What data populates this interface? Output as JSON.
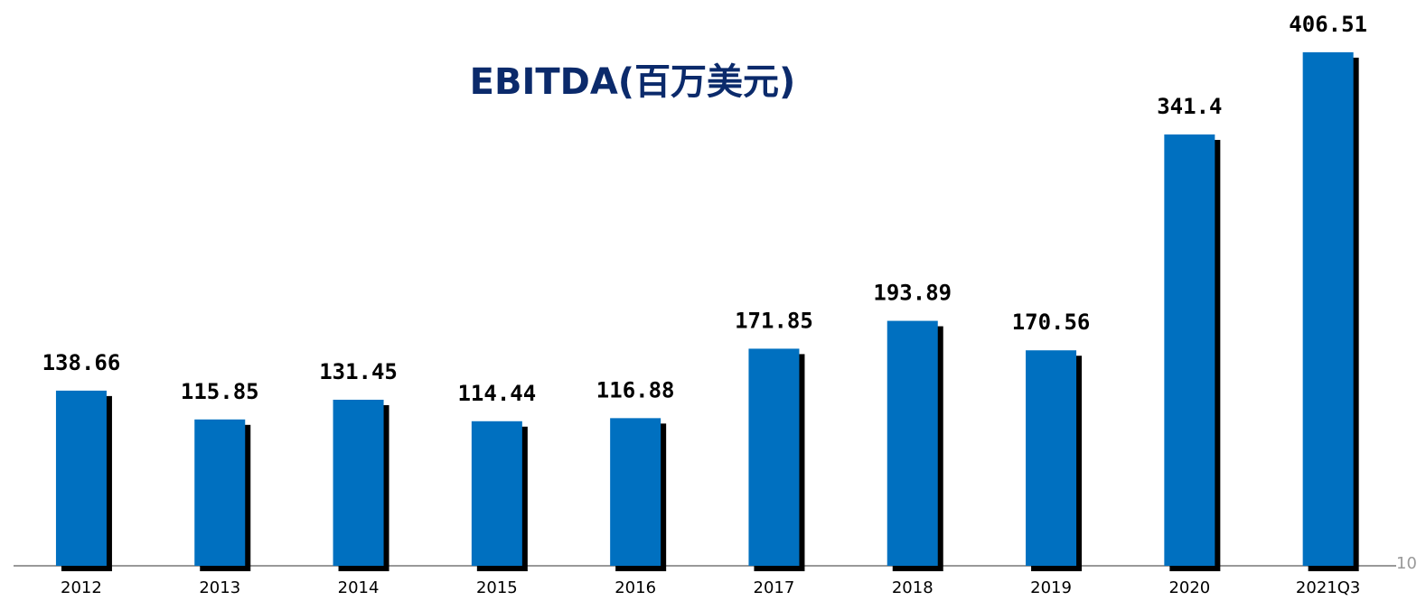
{
  "chart_data": {
    "type": "bar",
    "title": "EBITDA(百万美元)",
    "categories": [
      "2012",
      "2013",
      "2014",
      "2015",
      "2016",
      "2017",
      "2018",
      "2019",
      "2020",
      "2021Q3"
    ],
    "values": [
      138.66,
      115.85,
      131.45,
      114.44,
      116.88,
      171.85,
      193.89,
      170.56,
      341.4,
      406.51
    ],
    "color": "#0070c0",
    "ylim": [
      0,
      450
    ]
  },
  "page_number": "10"
}
